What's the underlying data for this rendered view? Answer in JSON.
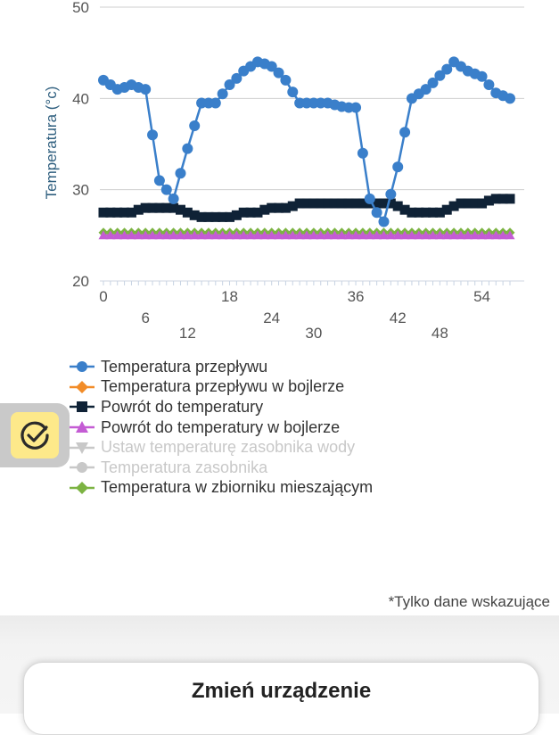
{
  "chart_data": {
    "type": "line",
    "ylabel": "Temperatura (°c)",
    "ylim": [
      20,
      50
    ],
    "yticks": [
      20,
      30,
      40,
      50
    ],
    "xlim": [
      0,
      58
    ],
    "xticks": [
      0,
      6,
      12,
      18,
      24,
      30,
      36,
      42,
      48,
      54
    ],
    "series": [
      {
        "name": "Temperatura przepływu",
        "color": "#3a7fca",
        "marker": "circle",
        "visible": true,
        "values": [
          42,
          41.5,
          41,
          41.2,
          41.5,
          41.2,
          41,
          36,
          31,
          30,
          29,
          31.8,
          34.5,
          37,
          39.5,
          39.5,
          39.5,
          40.5,
          41.5,
          42.2,
          43,
          43.5,
          44,
          43.8,
          43.5,
          42.8,
          42,
          40.7,
          39.5,
          39.5,
          39.5,
          39.5,
          39.5,
          39.3,
          39.1,
          39,
          39,
          34,
          29,
          27.5,
          26.5,
          29.5,
          32.5,
          36.3,
          40,
          40.5,
          41,
          41.7,
          42.5,
          43.2,
          44,
          43.5,
          43,
          42.7,
          42.4,
          41.5,
          40.6,
          40.3,
          40
        ]
      },
      {
        "name": "Temperatura przepływu w bojlerze",
        "color": "#f28c28",
        "marker": "diamond",
        "visible": true,
        "values": []
      },
      {
        "name": "Powrót do temperatury",
        "color": "#0f2236",
        "marker": "square",
        "visible": true,
        "values": [
          27.5,
          27.5,
          27.5,
          27.5,
          27.5,
          27.8,
          28,
          28,
          28,
          28,
          28,
          27.8,
          27.5,
          27.2,
          27,
          27,
          27,
          27,
          27,
          27.2,
          27.5,
          27.5,
          27.5,
          27.8,
          28,
          28,
          28,
          28.2,
          28.5,
          28.5,
          28.5,
          28.5,
          28.5,
          28.5,
          28.5,
          28.5,
          28.5,
          28.5,
          28.5,
          28.5,
          28.5,
          28.5,
          28.2,
          27.8,
          27.5,
          27.5,
          27.5,
          27.5,
          27.5,
          27.8,
          28.2,
          28.5,
          28.5,
          28.5,
          28.5,
          28.8,
          29,
          29,
          29
        ]
      },
      {
        "name": "Powrót do temperatury w bojlerze",
        "color": "#c45cd4",
        "marker": "triangle",
        "visible": true,
        "values": [
          25,
          25,
          25,
          25,
          25,
          25,
          25,
          25,
          25,
          25,
          25,
          25,
          25,
          25,
          25,
          25,
          25,
          25,
          25,
          25,
          25,
          25,
          25,
          25,
          25,
          25,
          25,
          25,
          25,
          25,
          25,
          25,
          25,
          25,
          25,
          25,
          25,
          25,
          25,
          25,
          25,
          25,
          25,
          25,
          25,
          25,
          25,
          25,
          25,
          25,
          25,
          25,
          25,
          25,
          25,
          25,
          25,
          25,
          25
        ]
      },
      {
        "name": "Ustaw temperaturę zasobnika wody",
        "color": "#c8c8c8",
        "marker": "triangle-down",
        "visible": false,
        "values": []
      },
      {
        "name": "Temperatura zasobnika",
        "color": "#c8c8c8",
        "marker": "circle",
        "visible": false,
        "values": []
      },
      {
        "name": "Temperatura w zbiorniku mieszającym",
        "color": "#7cb342",
        "marker": "diamond",
        "visible": true,
        "values": [
          25.3,
          25.3,
          25.3,
          25.3,
          25.3,
          25.3,
          25.3,
          25.3,
          25.3,
          25.3,
          25.3,
          25.3,
          25.3,
          25.3,
          25.3,
          25.3,
          25.3,
          25.3,
          25.3,
          25.3,
          25.3,
          25.3,
          25.3,
          25.3,
          25.3,
          25.3,
          25.3,
          25.3,
          25.3,
          25.3,
          25.3,
          25.3,
          25.3,
          25.3,
          25.3,
          25.3,
          25.3,
          25.3,
          25.3,
          25.3,
          25.3,
          25.3,
          25.3,
          25.3,
          25.3,
          25.3,
          25.3,
          25.3,
          25.3,
          25.3,
          25.3,
          25.3,
          25.3,
          25.3,
          25.3,
          25.3,
          25.3,
          25.3,
          25.3
        ]
      }
    ]
  },
  "footnote": "*Tylko dane wskazujące",
  "buttons": {
    "change_device": "Zmień urządzenie"
  },
  "icons": {
    "floating": "check-circle-icon"
  }
}
